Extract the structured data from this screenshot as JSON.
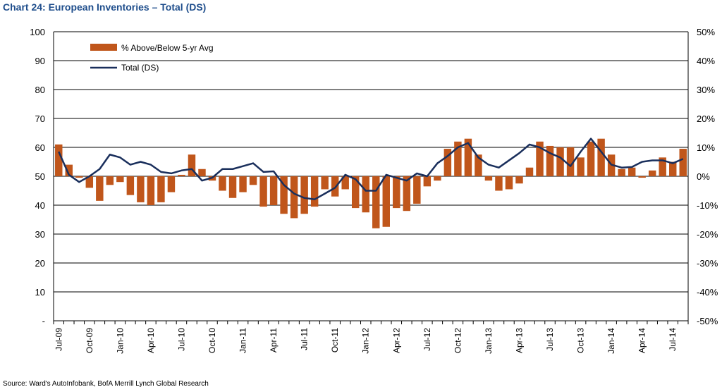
{
  "title": "Chart 24: European Inventories – Total (DS)",
  "source": "Source: Ward's AutoInfobank, BofA Merrill Lynch Global Research",
  "colors": {
    "bar": "#c0561b",
    "line": "#1a2f5c",
    "grid": "#000000"
  },
  "chart_data": {
    "type": "bar",
    "title": "Chart 24: European Inventories – Total (DS)",
    "left_axis": {
      "ylim": [
        0,
        100
      ],
      "ticks": [
        "-",
        "10",
        "20",
        "30",
        "40",
        "50",
        "60",
        "70",
        "80",
        "90",
        "100"
      ]
    },
    "right_axis": {
      "ylim": [
        -50,
        50
      ],
      "unit": "%",
      "ticks": [
        "-50%",
        "-40%",
        "-30%",
        "-20%",
        "-10%",
        "0%",
        "10%",
        "20%",
        "30%",
        "40%",
        "50%"
      ]
    },
    "x_tick_labels": [
      "Jul-09",
      "Oct-09",
      "Jan-10",
      "Apr-10",
      "Jul-10",
      "Oct-10",
      "Jan-11",
      "Apr-11",
      "Jul-11",
      "Oct-11",
      "Jan-12",
      "Apr-12",
      "Jul-12",
      "Oct-12",
      "Jan-13",
      "Apr-13",
      "Jul-13",
      "Oct-13",
      "Jan-14",
      "Apr-14",
      "Jul-14"
    ],
    "legend_position": "top-left",
    "grid": true,
    "series": [
      {
        "name": "% Above/Below  5-yr Avg",
        "type": "bar",
        "axis": "right",
        "values": [
          11,
          4,
          -0.5,
          -4,
          -8.5,
          -3,
          -2,
          -6.5,
          -9,
          -10,
          -9,
          -5.5,
          0.5,
          7.5,
          2.5,
          -1.5,
          -5,
          -7.5,
          -5.5,
          -3,
          -10.5,
          -10,
          -13,
          -14.5,
          -13,
          -10.5,
          -4.5,
          -7,
          -4.5,
          -11,
          -12.5,
          -18,
          -17.5,
          -11,
          -12,
          -9.5,
          -3.5,
          -1.5,
          9.5,
          12,
          13,
          7.5,
          -1.5,
          -5,
          -4.5,
          -2.5,
          3,
          12,
          10.5,
          10,
          10,
          6.5,
          12,
          13,
          7.5,
          2.5,
          3,
          -0.5,
          2,
          6.5,
          5,
          9.5
        ]
      },
      {
        "name": "Total (DS)",
        "type": "line",
        "axis": "left",
        "values": [
          58.5,
          50.5,
          48,
          50,
          52.5,
          57.5,
          56.5,
          54,
          55,
          54,
          51.5,
          51,
          52,
          52.5,
          48.5,
          49.5,
          52.5,
          52.5,
          53.5,
          54.5,
          51.5,
          51.7,
          47,
          44,
          42.5,
          42,
          44,
          46,
          50.5,
          49,
          45,
          45,
          50.5,
          49.5,
          48.5,
          51,
          50,
          54.5,
          57,
          60,
          61.5,
          56.5,
          54,
          53,
          55.5,
          58,
          61,
          60,
          58,
          56.5,
          53.5,
          58.5,
          63,
          58.5,
          54,
          53,
          53.2,
          55,
          55.5,
          55.5,
          54.5,
          56
        ]
      }
    ]
  }
}
